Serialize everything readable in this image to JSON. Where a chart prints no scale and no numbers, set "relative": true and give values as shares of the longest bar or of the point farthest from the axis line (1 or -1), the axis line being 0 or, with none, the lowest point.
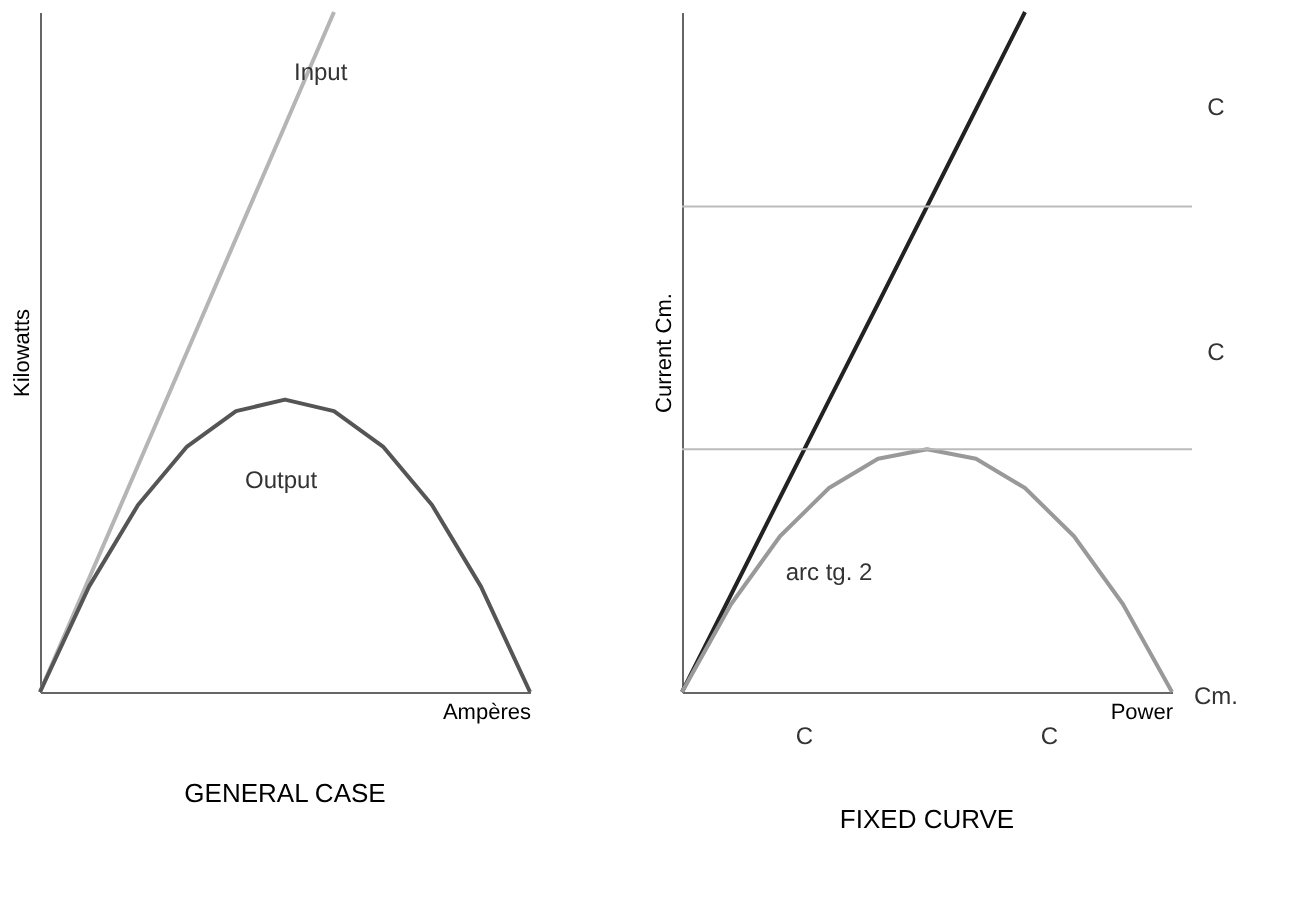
{
  "chart_data": [
    {
      "type": "line",
      "title": "GENERAL CASE",
      "xlabel": "Ampères",
      "ylabel": "Kilowatts",
      "relative": true,
      "grid": false,
      "categories": [
        null,
        null,
        null,
        null,
        null,
        null,
        null,
        null,
        null,
        null,
        null
      ],
      "series": [
        {
          "name": "Input",
          "color": "#b5b5b5",
          "values": [
            0,
            0.167,
            0.333,
            0.5,
            0.667,
            0.833,
            1.0,
            null,
            null,
            null,
            null
          ]
        },
        {
          "name": "Output",
          "color": "#555555",
          "values": [
            0,
            0.155,
            0.275,
            0.361,
            0.413,
            0.43,
            0.413,
            0.361,
            0.275,
            0.155,
            0
          ]
        }
      ]
    },
    {
      "type": "line",
      "title": "FIXED CURVE",
      "xlabel": "Power",
      "ylabel": "Current Cm.",
      "relative": true,
      "grid": false,
      "categories": [
        null,
        null,
        null,
        null,
        null,
        null,
        null,
        null,
        null,
        null,
        null
      ],
      "series": [
        {
          "color": "#222222",
          "values": [
            0,
            0.143,
            0.286,
            0.429,
            0.571,
            0.714,
            0.857,
            1.0,
            null,
            null,
            null
          ]
        },
        {
          "color": "#999999",
          "values": [
            0,
            0.129,
            0.229,
            0.3,
            0.343,
            0.357,
            0.343,
            0.3,
            0.229,
            0.129,
            0
          ]
        }
      ],
      "ref_lines": [
        {
          "axis": "y",
          "value": 0.714,
          "color": "#bbbbbb"
        },
        {
          "axis": "y",
          "value": 0.357,
          "color": "#bbbbbb"
        }
      ],
      "annotations": [
        "C",
        "C",
        "C",
        "C",
        "arc tg. 2",
        "Cm."
      ]
    }
  ]
}
